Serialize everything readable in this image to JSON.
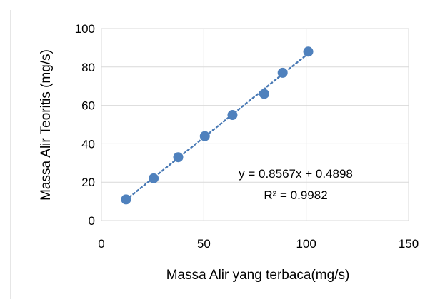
{
  "chart_data": {
    "type": "scatter",
    "xlabel": "Massa Alir yang terbaca(mg/s)",
    "ylabel": "Massa Alir Teoritis (mg/s)",
    "xlim": [
      0,
      150
    ],
    "ylim": [
      0,
      100
    ],
    "x_ticks": [
      0,
      50,
      100,
      150
    ],
    "y_ticks": [
      0,
      20,
      40,
      60,
      80,
      100
    ],
    "x_tick_labels": [
      "0",
      "50",
      "100",
      "150"
    ],
    "y_tick_labels": [
      "0",
      "20",
      "40",
      "60",
      "80",
      "100"
    ],
    "grid": true,
    "series": [
      {
        "points": [
          {
            "x": 12,
            "y": 11
          },
          {
            "x": 25.5,
            "y": 22
          },
          {
            "x": 37.5,
            "y": 33
          },
          {
            "x": 50.5,
            "y": 44
          },
          {
            "x": 64,
            "y": 55
          },
          {
            "x": 79.5,
            "y": 66
          },
          {
            "x": 88.5,
            "y": 77
          },
          {
            "x": 101,
            "y": 88
          }
        ],
        "color": "#4f81bd"
      }
    ],
    "trendline": {
      "slope": 0.8567,
      "intercept": 0.4898,
      "x_range": [
        12,
        101
      ],
      "color": "#4a7ab5",
      "style": "dotted"
    },
    "annotations": {
      "equation": "y = 0.8567x + 0.4898",
      "r_squared": "R² = 0.9982"
    },
    "colors": {
      "gridline": "#d9d9d9",
      "marker": "#4f81bd"
    }
  }
}
